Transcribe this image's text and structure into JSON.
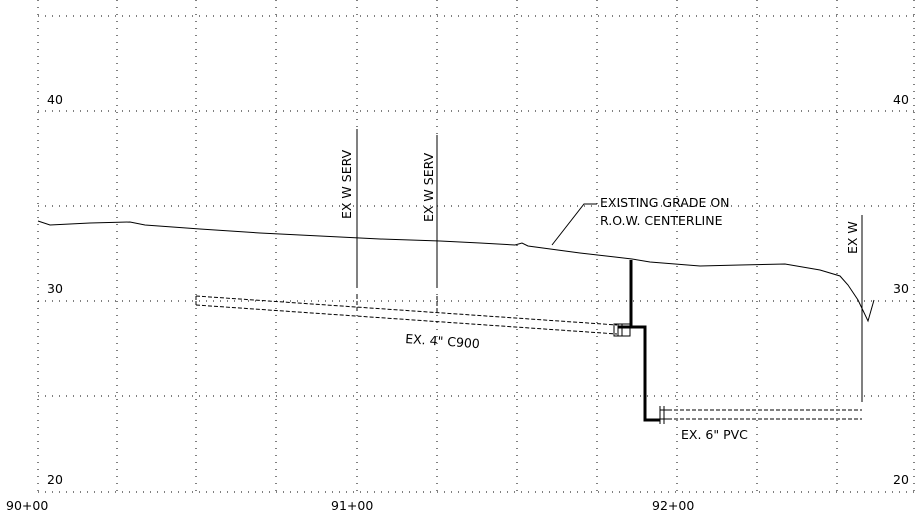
{
  "elevation_labels": [
    "40",
    "30",
    "20"
  ],
  "station_labels": [
    "90+00",
    "91+00",
    "92+00"
  ],
  "callouts": {
    "service_1": "EX W SERV",
    "service_2": "EX W SERV",
    "main": "EX W",
    "grade_line_1": "EXISTING GRADE ON",
    "grade_line_2": "R.O.W. CENTERLINE",
    "pipe_4": "EX. 4\" C900",
    "pipe_6": "EX. 6\" PVC"
  }
}
